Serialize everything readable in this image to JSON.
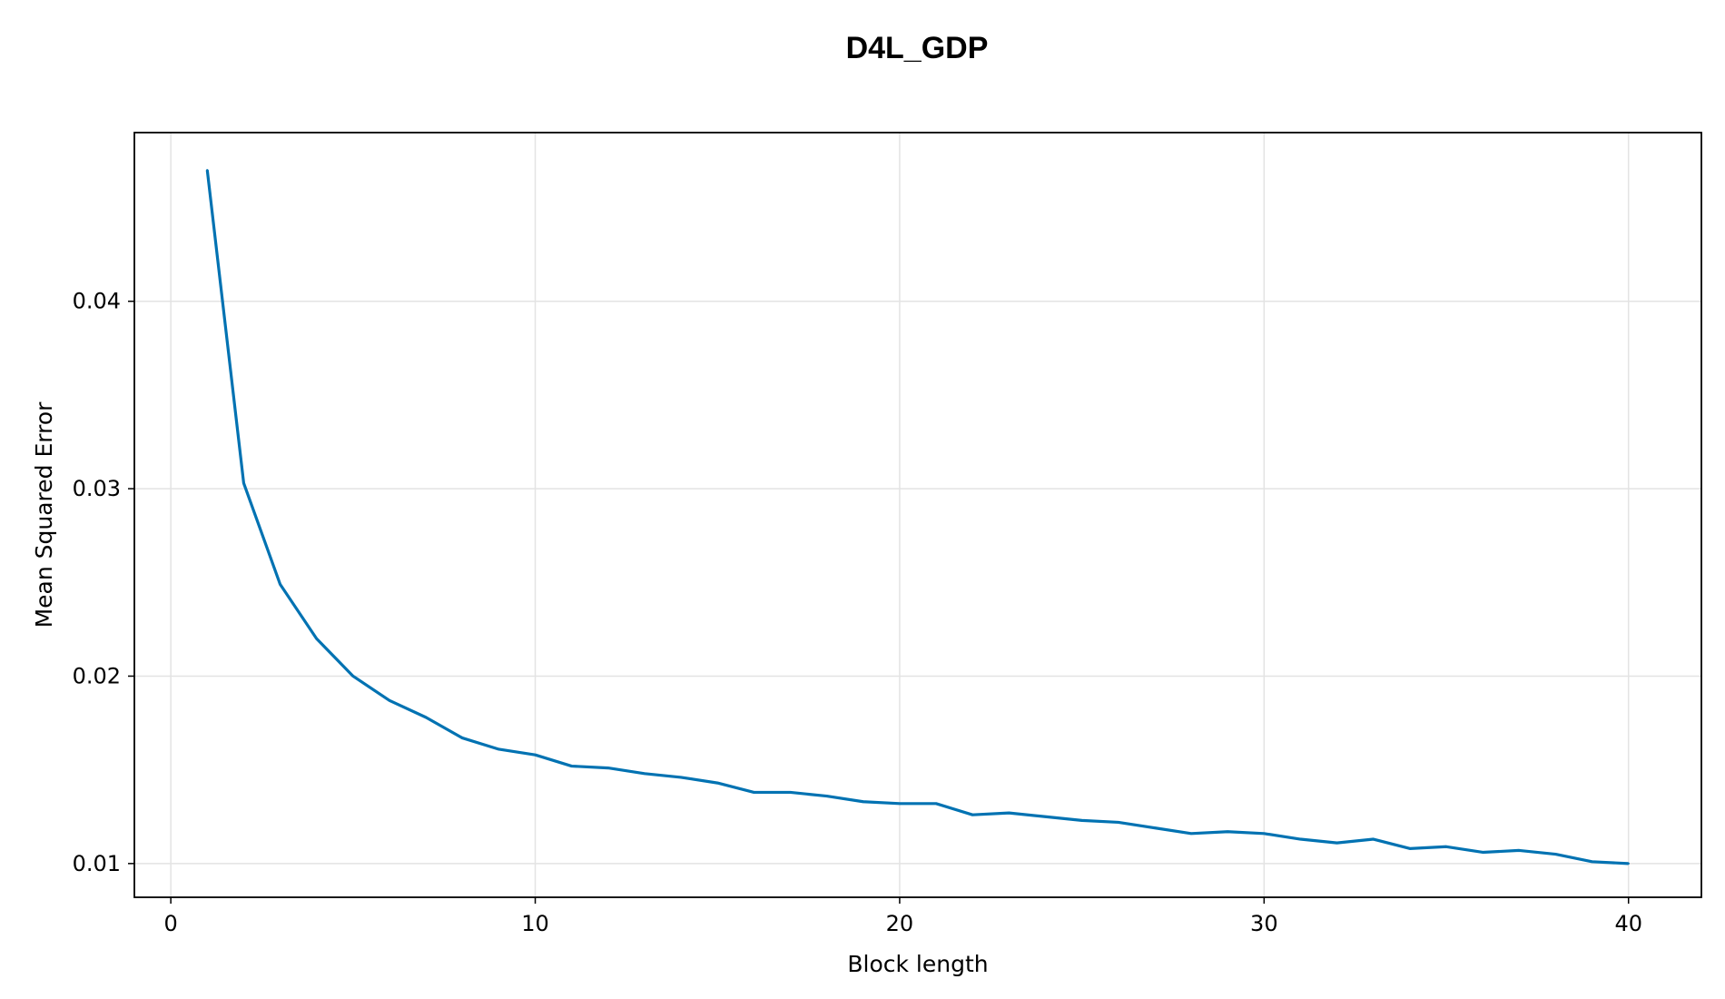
{
  "chart_data": {
    "type": "line",
    "title": "D4L_GDP",
    "xlabel": "Block length",
    "ylabel": "Mean Squared Error",
    "xlim": [
      -1,
      42
    ],
    "ylim": [
      0.0082,
      0.049
    ],
    "xticks": [
      0,
      10,
      20,
      30,
      40
    ],
    "yticks": [
      0.01,
      0.02,
      0.03,
      0.04
    ],
    "xtick_labels": [
      "0",
      "10",
      "20",
      "30",
      "40"
    ],
    "ytick_labels": [
      "0.01",
      "0.02",
      "0.03",
      "0.04"
    ],
    "grid": true,
    "legend": "none",
    "series": [
      {
        "color": "#0072b2",
        "x": [
          1,
          2,
          3,
          4,
          5,
          6,
          7,
          8,
          9,
          10,
          11,
          12,
          13,
          14,
          15,
          16,
          17,
          18,
          19,
          20,
          21,
          22,
          23,
          24,
          25,
          26,
          27,
          28,
          29,
          30,
          31,
          32,
          33,
          34,
          35,
          36,
          37,
          38,
          39,
          40
        ],
        "y": [
          0.047,
          0.0303,
          0.0249,
          0.022,
          0.02,
          0.0187,
          0.0178,
          0.0167,
          0.0161,
          0.0158,
          0.0152,
          0.0151,
          0.0148,
          0.0146,
          0.0143,
          0.0138,
          0.0138,
          0.0136,
          0.0133,
          0.0132,
          0.0132,
          0.0126,
          0.0127,
          0.0125,
          0.0123,
          0.0122,
          0.0119,
          0.0116,
          0.0117,
          0.0116,
          0.0113,
          0.0111,
          0.0113,
          0.0108,
          0.0109,
          0.0106,
          0.0107,
          0.0105,
          0.0101,
          0.01
        ]
      }
    ]
  }
}
